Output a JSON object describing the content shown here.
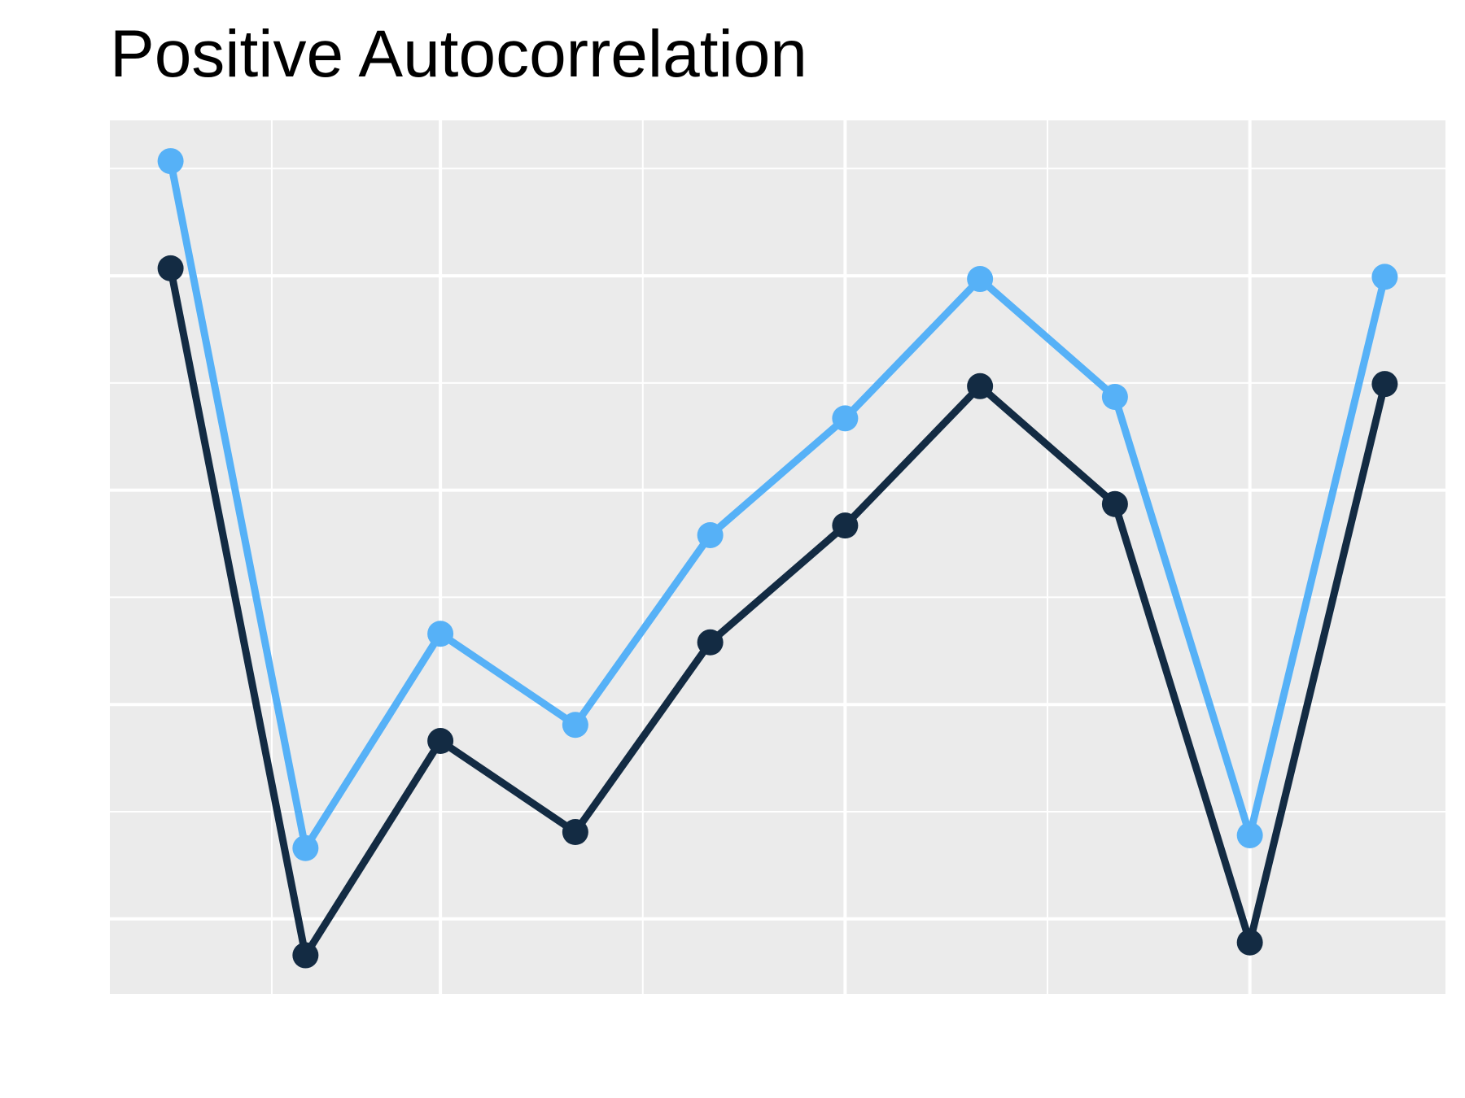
{
  "chart_data": {
    "type": "line",
    "title": "Positive Autocorrelation",
    "xlabel": "",
    "ylabel": "",
    "x": [
      1,
      2,
      3,
      4,
      5,
      6,
      7,
      8,
      9,
      10
    ],
    "xlim": [
      0.55,
      10.45
    ],
    "ylim": [
      -0.7,
      7.45
    ],
    "x_grid_major": [
      3,
      6,
      9
    ],
    "x_grid_minor": [
      1.75,
      4.5,
      7.5
    ],
    "y_grid_major": [
      0,
      2,
      4,
      6
    ],
    "y_grid_minor": [
      1,
      3,
      5,
      7
    ],
    "grid": true,
    "legend": "none",
    "panel_color": "#EBEBEB",
    "grid_color": "#FFFFFF",
    "series": [
      {
        "color": "#56B1F7",
        "values": [
          7.07,
          0.66,
          2.66,
          1.81,
          3.58,
          4.67,
          5.97,
          4.87,
          0.78,
          5.99
        ]
      },
      {
        "color": "#132B43",
        "values": [
          6.07,
          -0.34,
          1.66,
          0.81,
          2.58,
          3.67,
          4.97,
          3.87,
          -0.22,
          4.99
        ]
      }
    ]
  }
}
